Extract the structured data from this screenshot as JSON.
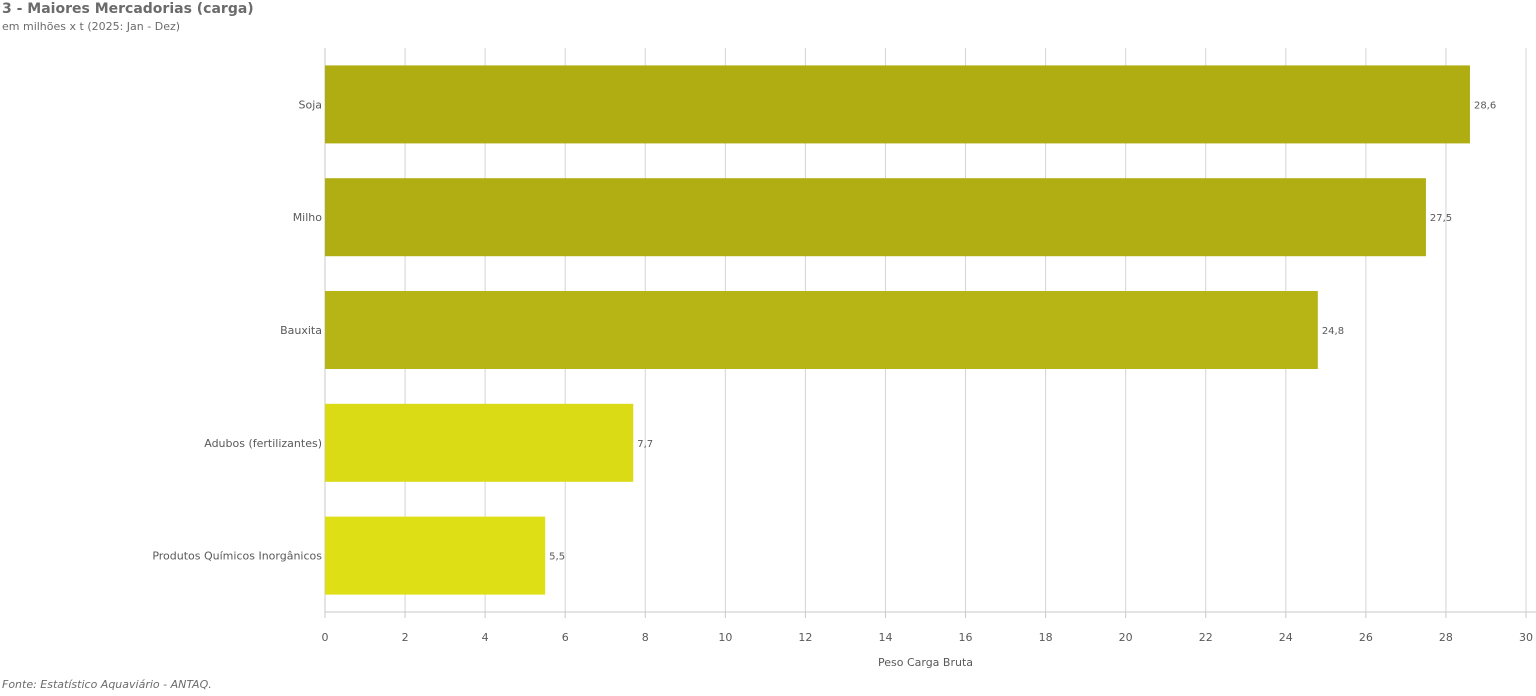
{
  "header": {
    "title": "3 - Maiores Mercadorias (carga)",
    "subtitle": "em milhões x t (2025: Jan - Dez)"
  },
  "footer": {
    "source": "Fonte: Estatístico Aquaviário - ANTAQ."
  },
  "chart_data": {
    "type": "bar",
    "orientation": "horizontal",
    "categories": [
      "Soja",
      "Milho",
      "Bauxita",
      "Adubos (fertilizantes)",
      "Produtos Químicos Inorgânicos"
    ],
    "values": [
      28.6,
      27.5,
      24.8,
      7.7,
      5.5
    ],
    "data_labels": [
      "28,6",
      "27,5",
      "24,8",
      "7,7",
      "5,5"
    ],
    "colors": [
      "#afad12",
      "#b0ae12",
      "#b7b515",
      "#dada15",
      "#dfdf15"
    ],
    "xlabel": "Peso Carga Bruta",
    "ylabel": "",
    "xlim": [
      0,
      30
    ],
    "xticks": [
      0,
      2,
      4,
      6,
      8,
      10,
      12,
      14,
      16,
      18,
      20,
      22,
      24,
      26,
      28,
      30
    ],
    "grid": true,
    "legend": "none"
  }
}
